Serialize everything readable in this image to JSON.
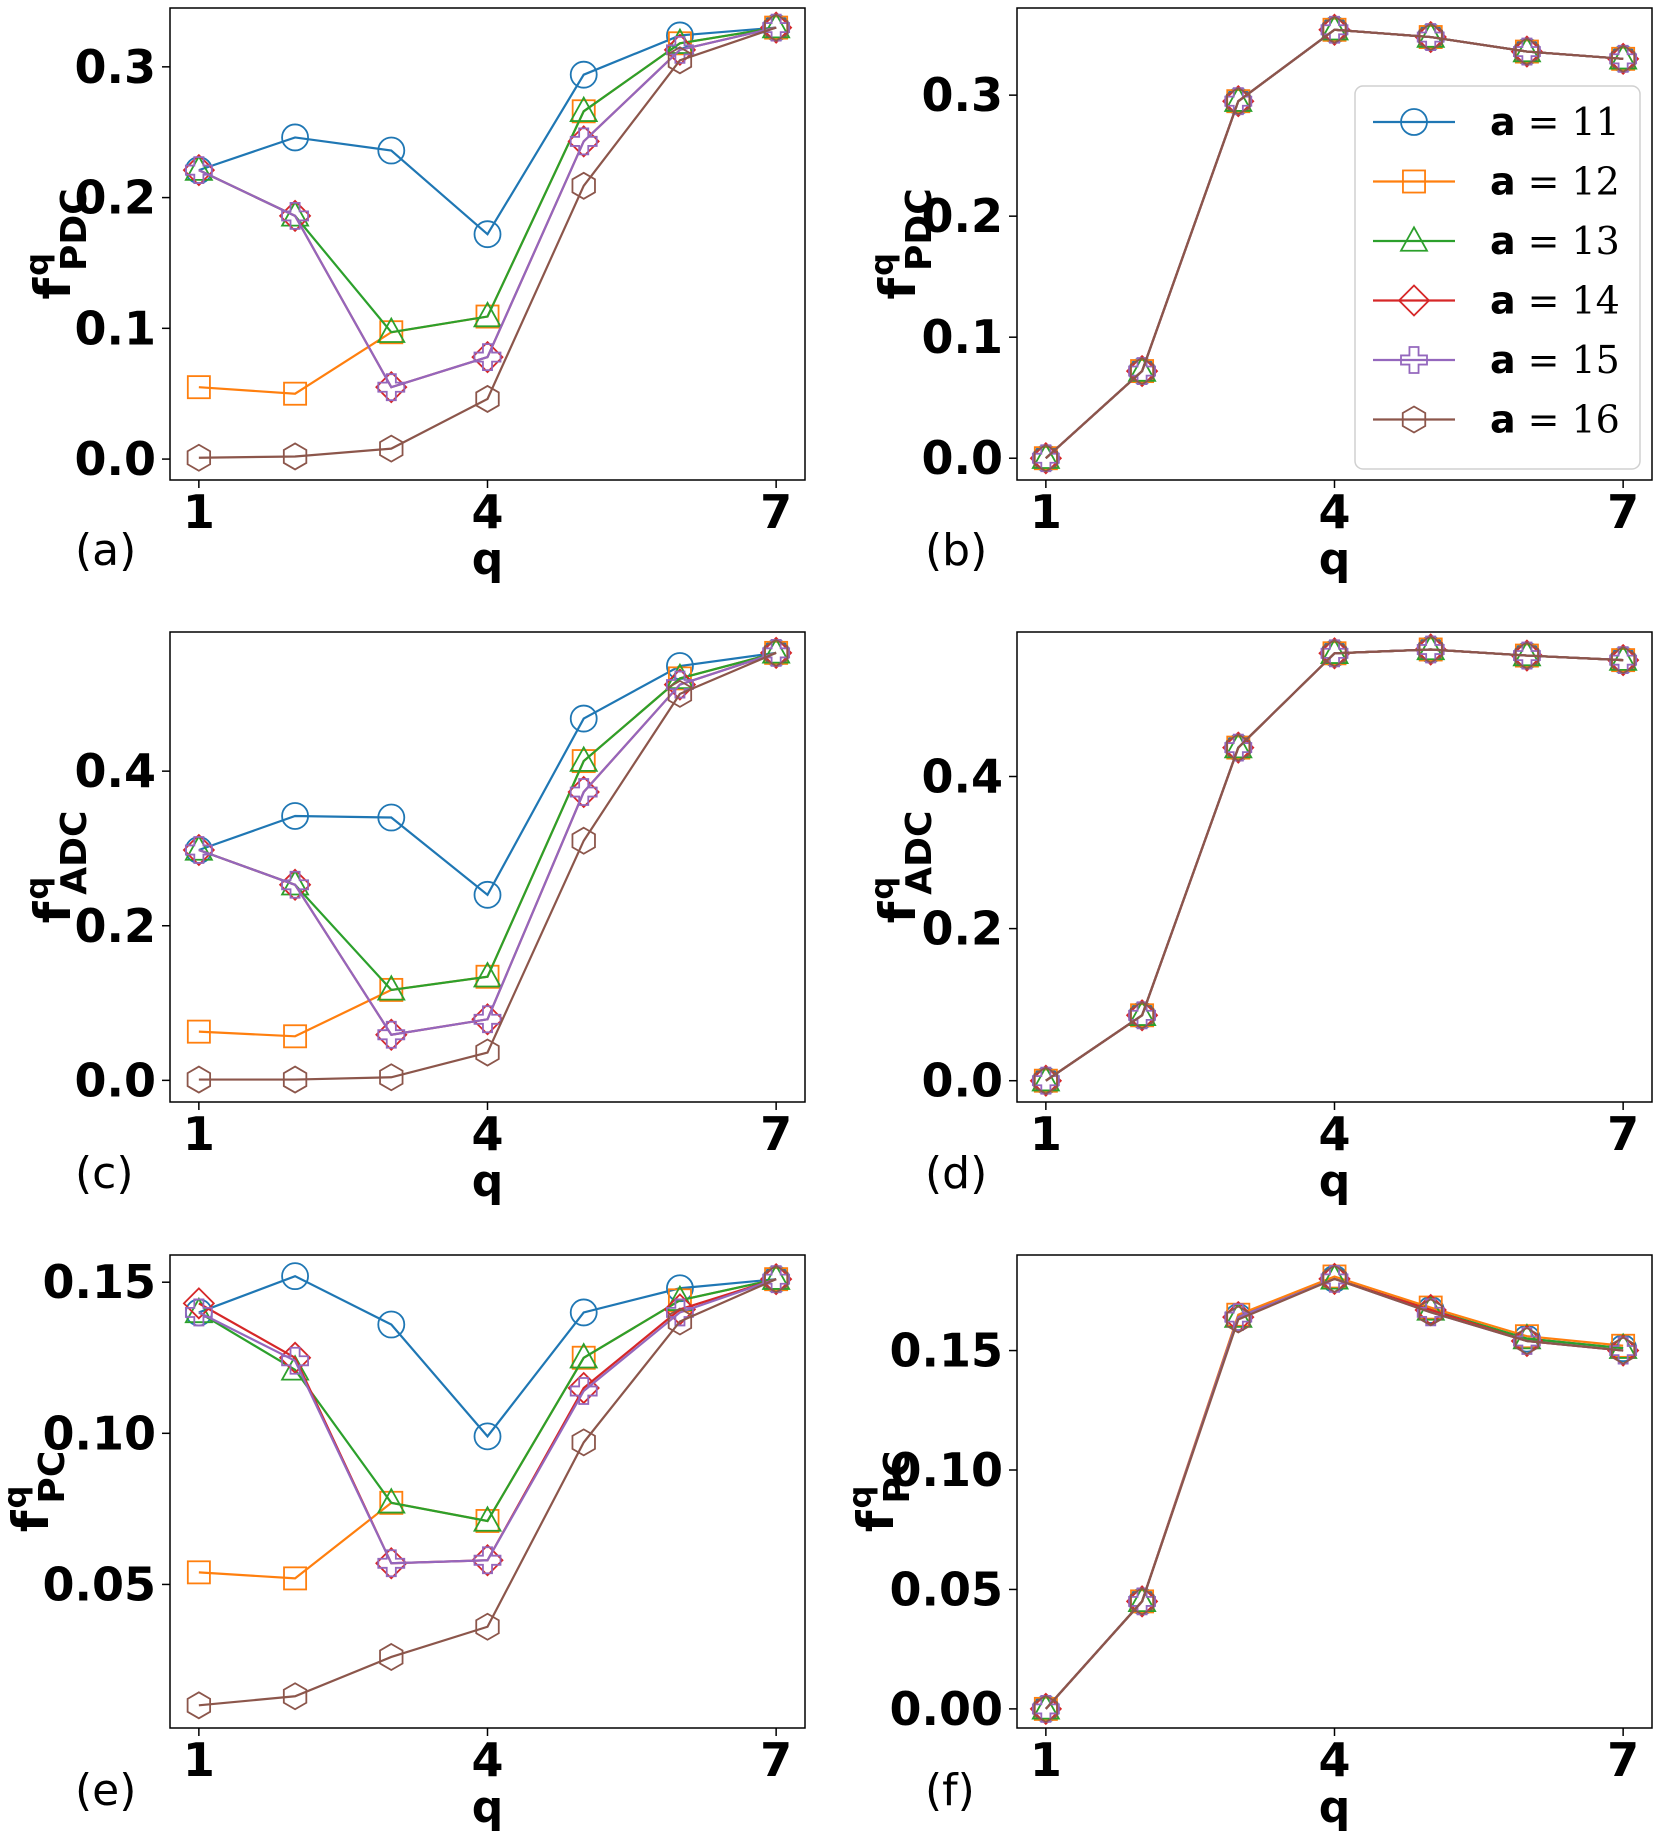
{
  "figure": {
    "legend_series_prefix": "a",
    "legend_equals": "="
  },
  "chart_data": [
    {
      "id": "a",
      "type": "line",
      "panel_label": "(a)",
      "xlabel": "q",
      "ylabel_main": "f",
      "ylabel_sup": "q",
      "ylabel_sub": "PDC",
      "x": [
        1,
        2,
        3,
        4,
        5,
        6,
        7
      ],
      "xticks": [
        1,
        4,
        7
      ],
      "xtick_labels": [
        "1",
        "4",
        "7"
      ],
      "yticks": [
        0.0,
        0.1,
        0.2,
        0.3
      ],
      "ytick_labels": [
        "0.0",
        "0.1",
        "0.2",
        "0.3"
      ],
      "xlim": [
        0.7,
        7.3
      ],
      "ylim": [
        -0.016,
        0.345
      ],
      "grid": false,
      "legend": false,
      "series": [
        {
          "name": "11",
          "color": "#1f77b4",
          "marker": "circle",
          "values": [
            0.221,
            0.246,
            0.236,
            0.172,
            0.294,
            0.324,
            0.33
          ]
        },
        {
          "name": "12",
          "color": "#ff7f0e",
          "marker": "square",
          "values": [
            0.055,
            0.05,
            0.097,
            0.109,
            0.266,
            0.318,
            0.33
          ]
        },
        {
          "name": "13",
          "color": "#2ca02c",
          "marker": "triangle",
          "values": [
            0.221,
            0.186,
            0.097,
            0.109,
            0.266,
            0.318,
            0.33
          ]
        },
        {
          "name": "14",
          "color": "#d62728",
          "marker": "diamond",
          "values": [
            0.221,
            0.186,
            0.055,
            0.078,
            0.243,
            0.313,
            0.33
          ]
        },
        {
          "name": "15",
          "color": "#9467bd",
          "marker": "plus",
          "values": [
            0.221,
            0.186,
            0.055,
            0.078,
            0.243,
            0.313,
            0.33
          ]
        },
        {
          "name": "16",
          "color": "#8c564b",
          "marker": "hexagon",
          "values": [
            0.001,
            0.002,
            0.008,
            0.046,
            0.209,
            0.305,
            0.33
          ]
        }
      ]
    },
    {
      "id": "b",
      "type": "line",
      "panel_label": "(b)",
      "xlabel": "q",
      "ylabel_main": "f",
      "ylabel_sup": "q",
      "ylabel_sub": "PDC",
      "x": [
        1,
        2,
        3,
        4,
        5,
        6,
        7
      ],
      "xticks": [
        1,
        4,
        7
      ],
      "xtick_labels": [
        "1",
        "4",
        "7"
      ],
      "yticks": [
        0.0,
        0.1,
        0.2,
        0.3
      ],
      "ytick_labels": [
        "0.0",
        "0.1",
        "0.2",
        "0.3"
      ],
      "xlim": [
        0.7,
        7.3
      ],
      "ylim": [
        -0.018,
        0.372
      ],
      "grid": false,
      "legend": true,
      "legend_position": "upper-right",
      "series": [
        {
          "name": "11",
          "color": "#1f77b4",
          "marker": "circle",
          "values": [
            0.0,
            0.072,
            0.295,
            0.354,
            0.348,
            0.336,
            0.33
          ]
        },
        {
          "name": "12",
          "color": "#ff7f0e",
          "marker": "square",
          "values": [
            0.0,
            0.072,
            0.295,
            0.354,
            0.348,
            0.336,
            0.33
          ]
        },
        {
          "name": "13",
          "color": "#2ca02c",
          "marker": "triangle",
          "values": [
            0.0,
            0.072,
            0.295,
            0.354,
            0.348,
            0.336,
            0.33
          ]
        },
        {
          "name": "14",
          "color": "#d62728",
          "marker": "diamond",
          "values": [
            0.0,
            0.072,
            0.295,
            0.354,
            0.348,
            0.336,
            0.33
          ]
        },
        {
          "name": "15",
          "color": "#9467bd",
          "marker": "plus",
          "values": [
            0.0,
            0.072,
            0.295,
            0.354,
            0.348,
            0.336,
            0.33
          ]
        },
        {
          "name": "16",
          "color": "#8c564b",
          "marker": "hexagon",
          "values": [
            0.0,
            0.072,
            0.295,
            0.354,
            0.348,
            0.336,
            0.33
          ]
        }
      ]
    },
    {
      "id": "c",
      "type": "line",
      "panel_label": "(c)",
      "xlabel": "q",
      "ylabel_main": "f",
      "ylabel_sup": "q",
      "ylabel_sub": "ADC",
      "x": [
        1,
        2,
        3,
        4,
        5,
        6,
        7
      ],
      "xticks": [
        1,
        4,
        7
      ],
      "xtick_labels": [
        "1",
        "4",
        "7"
      ],
      "yticks": [
        0.0,
        0.2,
        0.4
      ],
      "ytick_labels": [
        "0.0",
        "0.2",
        "0.4"
      ],
      "xlim": [
        0.7,
        7.3
      ],
      "ylim": [
        -0.028,
        0.58
      ],
      "grid": false,
      "legend": false,
      "series": [
        {
          "name": "11",
          "color": "#1f77b4",
          "marker": "circle",
          "values": [
            0.298,
            0.342,
            0.34,
            0.24,
            0.468,
            0.536,
            0.553
          ]
        },
        {
          "name": "12",
          "color": "#ff7f0e",
          "marker": "square",
          "values": [
            0.063,
            0.057,
            0.117,
            0.134,
            0.413,
            0.52,
            0.553
          ]
        },
        {
          "name": "13",
          "color": "#2ca02c",
          "marker": "triangle",
          "values": [
            0.298,
            0.253,
            0.117,
            0.134,
            0.413,
            0.52,
            0.553
          ]
        },
        {
          "name": "14",
          "color": "#d62728",
          "marker": "diamond",
          "values": [
            0.298,
            0.253,
            0.059,
            0.079,
            0.373,
            0.512,
            0.553
          ]
        },
        {
          "name": "15",
          "color": "#9467bd",
          "marker": "plus",
          "values": [
            0.298,
            0.253,
            0.059,
            0.079,
            0.373,
            0.512,
            0.553
          ]
        },
        {
          "name": "16",
          "color": "#8c564b",
          "marker": "hexagon",
          "values": [
            0.001,
            0.001,
            0.004,
            0.036,
            0.31,
            0.5,
            0.553
          ]
        }
      ]
    },
    {
      "id": "d",
      "type": "line",
      "panel_label": "(d)",
      "xlabel": "q",
      "ylabel_main": "f",
      "ylabel_sup": "q",
      "ylabel_sub": "ADC",
      "x": [
        1,
        2,
        3,
        4,
        5,
        6,
        7
      ],
      "xticks": [
        1,
        4,
        7
      ],
      "xtick_labels": [
        "1",
        "4",
        "7"
      ],
      "yticks": [
        0.0,
        0.2,
        0.4
      ],
      "ytick_labels": [
        "0.0",
        "0.2",
        "0.4"
      ],
      "xlim": [
        0.7,
        7.3
      ],
      "ylim": [
        -0.028,
        0.59
      ],
      "grid": false,
      "legend": false,
      "series": [
        {
          "name": "11",
          "color": "#1f77b4",
          "marker": "circle",
          "values": [
            0.0,
            0.086,
            0.438,
            0.562,
            0.567,
            0.559,
            0.553
          ]
        },
        {
          "name": "12",
          "color": "#ff7f0e",
          "marker": "square",
          "values": [
            0.0,
            0.086,
            0.438,
            0.562,
            0.567,
            0.559,
            0.553
          ]
        },
        {
          "name": "13",
          "color": "#2ca02c",
          "marker": "triangle",
          "values": [
            0.0,
            0.086,
            0.438,
            0.562,
            0.567,
            0.559,
            0.553
          ]
        },
        {
          "name": "14",
          "color": "#d62728",
          "marker": "diamond",
          "values": [
            0.0,
            0.086,
            0.438,
            0.562,
            0.567,
            0.559,
            0.553
          ]
        },
        {
          "name": "15",
          "color": "#9467bd",
          "marker": "plus",
          "values": [
            0.0,
            0.086,
            0.438,
            0.562,
            0.567,
            0.559,
            0.553
          ]
        },
        {
          "name": "16",
          "color": "#8c564b",
          "marker": "hexagon",
          "values": [
            0.0,
            0.086,
            0.438,
            0.562,
            0.567,
            0.559,
            0.553
          ]
        }
      ]
    },
    {
      "id": "e",
      "type": "line",
      "panel_label": "(e)",
      "xlabel": "q",
      "ylabel_main": "f",
      "ylabel_sup": "q",
      "ylabel_sub": "PC",
      "x": [
        1,
        2,
        3,
        4,
        5,
        6,
        7
      ],
      "xticks": [
        1,
        4,
        7
      ],
      "xtick_labels": [
        "1",
        "4",
        "7"
      ],
      "yticks": [
        0.05,
        0.1,
        0.15
      ],
      "ytick_labels": [
        "0.05",
        "0.10",
        "0.15"
      ],
      "xlim": [
        0.7,
        7.3
      ],
      "ylim": [
        0.0025,
        0.159
      ],
      "grid": false,
      "legend": false,
      "series": [
        {
          "name": "11",
          "color": "#1f77b4",
          "marker": "circle",
          "values": [
            0.14,
            0.152,
            0.136,
            0.099,
            0.14,
            0.148,
            0.151
          ]
        },
        {
          "name": "12",
          "color": "#ff7f0e",
          "marker": "square",
          "values": [
            0.054,
            0.052,
            0.077,
            0.071,
            0.125,
            0.144,
            0.151
          ]
        },
        {
          "name": "13",
          "color": "#2ca02c",
          "marker": "triangle",
          "values": [
            0.14,
            0.121,
            0.077,
            0.071,
            0.125,
            0.144,
            0.151
          ]
        },
        {
          "name": "14",
          "color": "#d62728",
          "marker": "diamond",
          "values": [
            0.143,
            0.125,
            0.057,
            0.058,
            0.115,
            0.141,
            0.151
          ]
        },
        {
          "name": "15",
          "color": "#9467bd",
          "marker": "plus",
          "values": [
            0.14,
            0.124,
            0.057,
            0.058,
            0.114,
            0.14,
            0.151
          ]
        },
        {
          "name": "16",
          "color": "#8c564b",
          "marker": "hexagon",
          "values": [
            0.01,
            0.013,
            0.026,
            0.036,
            0.097,
            0.137,
            0.151
          ]
        }
      ]
    },
    {
      "id": "f",
      "type": "line",
      "panel_label": "(f)",
      "xlabel": "q",
      "ylabel_main": "f",
      "ylabel_sup": "q",
      "ylabel_sub": "PC",
      "x": [
        1,
        2,
        3,
        4,
        5,
        6,
        7
      ],
      "xticks": [
        1,
        4,
        7
      ],
      "xtick_labels": [
        "1",
        "4",
        "7"
      ],
      "yticks": [
        0.0,
        0.05,
        0.1,
        0.15
      ],
      "ytick_labels": [
        "0.00",
        "0.05",
        "0.10",
        "0.15"
      ],
      "xlim": [
        0.7,
        7.3
      ],
      "ylim": [
        -0.008,
        0.19
      ],
      "grid": false,
      "legend": false,
      "series": [
        {
          "name": "11",
          "color": "#1f77b4",
          "marker": "circle",
          "values": [
            0.0,
            0.045,
            0.164,
            0.18,
            0.167,
            0.155,
            0.151
          ]
        },
        {
          "name": "12",
          "color": "#ff7f0e",
          "marker": "square",
          "values": [
            0.0,
            0.045,
            0.165,
            0.181,
            0.168,
            0.156,
            0.152
          ]
        },
        {
          "name": "13",
          "color": "#2ca02c",
          "marker": "triangle",
          "values": [
            0.0,
            0.045,
            0.164,
            0.18,
            0.167,
            0.155,
            0.151
          ]
        },
        {
          "name": "14",
          "color": "#d62728",
          "marker": "diamond",
          "values": [
            0.0,
            0.045,
            0.164,
            0.18,
            0.167,
            0.154,
            0.15
          ]
        },
        {
          "name": "15",
          "color": "#9467bd",
          "marker": "plus",
          "values": [
            0.0,
            0.045,
            0.164,
            0.18,
            0.166,
            0.154,
            0.15
          ]
        },
        {
          "name": "16",
          "color": "#8c564b",
          "marker": "hexagon",
          "values": [
            0.0,
            0.045,
            0.163,
            0.18,
            0.166,
            0.154,
            0.15
          ]
        }
      ]
    }
  ]
}
